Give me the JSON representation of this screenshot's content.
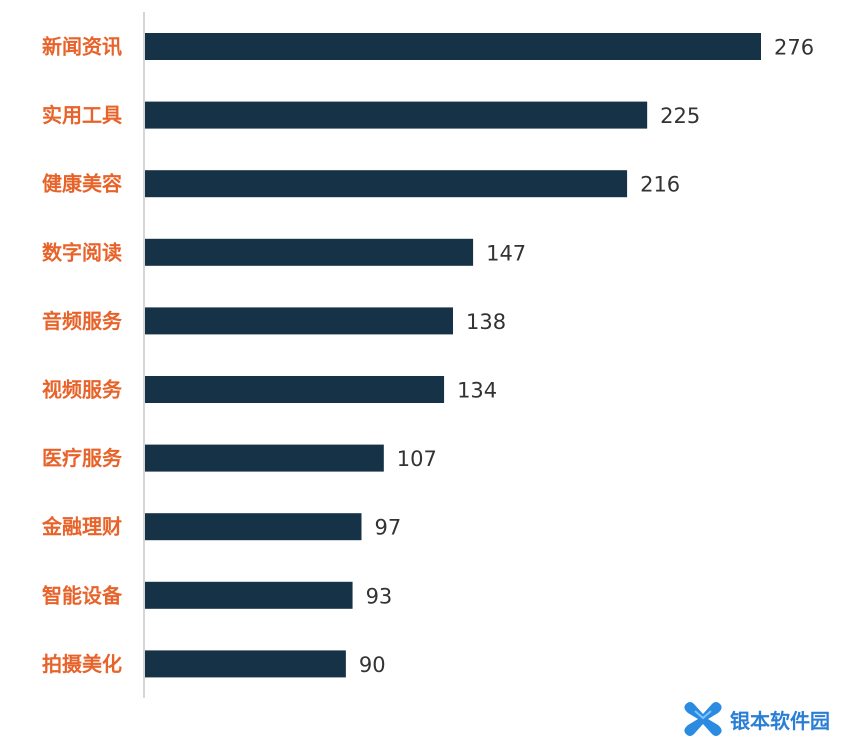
{
  "chart_data": {
    "type": "bar",
    "orientation": "horizontal",
    "categories": [
      "新闻资讯",
      "实用工具",
      "健康美容",
      "数字阅读",
      "音频服务",
      "视频服务",
      "医疗服务",
      "金融理财",
      "智能设备",
      "拍摄美化"
    ],
    "values": [
      276,
      225,
      216,
      147,
      138,
      134,
      107,
      97,
      93,
      90
    ],
    "title": "",
    "xlabel": "",
    "ylabel": "",
    "xlim": [
      0,
      276
    ],
    "grid": false,
    "legend": "none",
    "data_labels": true
  },
  "colors": {
    "bar": "#163247",
    "category_label": "#e8632a",
    "value_label": "#333333",
    "axis": "#c8c8c8"
  },
  "watermark": {
    "text": "银本软件园",
    "icon": "x-logo-icon"
  }
}
